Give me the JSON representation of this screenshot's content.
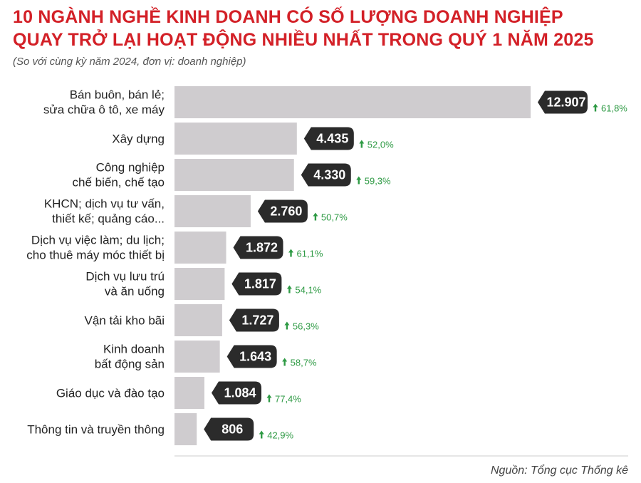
{
  "header": {
    "title_line1": "10 NGÀNH NGHỀ KINH DOANH CÓ SỐ LƯỢNG DOANH NGHIỆP",
    "title_line2": "QUAY TRỞ LẠI HOẠT ĐỘNG NHIỀU NHẤT TRONG QUÝ 1 NĂM 2025",
    "subtitle": "(So với cùng kỳ năm 2024, đơn vị: doanh nghiệp)"
  },
  "source": "Nguồn: Tổng cục Thống kê",
  "colors": {
    "title": "#d32027",
    "bar": "#cfcccf",
    "value_badge": "#2b2b2b",
    "growth": "#2e9a44"
  },
  "chart_data": {
    "type": "bar",
    "orientation": "horizontal",
    "categories": [
      [
        "Bán buôn, bán lẻ;",
        "sửa chữa ô tô, xe máy"
      ],
      [
        "Xây dựng"
      ],
      [
        "Công nghiệp",
        "chế biến, chế tạo"
      ],
      [
        "KHCN; dịch vụ tư vấn,",
        "thiết kế; quảng cáo..."
      ],
      [
        "Dịch vụ việc làm; du lịch;",
        "cho thuê máy móc thiết bị"
      ],
      [
        "Dịch vụ lưu trú",
        "và ăn uống"
      ],
      [
        "Vận tải kho bãi"
      ],
      [
        "Kinh doanh",
        "bất động sản"
      ],
      [
        "Giáo dục và đào tạo"
      ],
      [
        "Thông tin và truyền thông"
      ]
    ],
    "values": [
      12907,
      4435,
      4330,
      2760,
      1872,
      1817,
      1727,
      1643,
      1084,
      806
    ],
    "value_labels": [
      "12.907",
      "4.435",
      "4.330",
      "2.760",
      "1.872",
      "1.817",
      "1.727",
      "1.643",
      "1.084",
      "806"
    ],
    "growth_labels": [
      "61,8%",
      "52,0%",
      "59,3%",
      "50,7%",
      "61,1%",
      "54,1%",
      "56,3%",
      "58,7%",
      "77,4%",
      "42,9%"
    ],
    "growth_direction": "up",
    "title": "",
    "xlabel": "",
    "ylabel": "",
    "xlim": [
      0,
      12907
    ],
    "grid": false,
    "legend": "none"
  }
}
